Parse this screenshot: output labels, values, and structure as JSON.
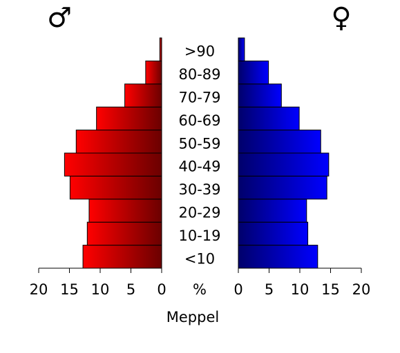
{
  "chart_data": {
    "type": "pyramid",
    "title": "Meppel",
    "x_label": "%",
    "categories": [
      "<10",
      "10-19",
      "20-29",
      "30-39",
      "40-49",
      "50-59",
      "60-69",
      "70-79",
      "80-89",
      ">90"
    ],
    "series": [
      {
        "name": "♂",
        "color": "#ff0000",
        "side": "left",
        "values": [
          12.8,
          12.1,
          11.8,
          14.9,
          15.8,
          13.9,
          10.6,
          6.0,
          2.6,
          0.3
        ]
      },
      {
        "name": "♀",
        "color": "#0000ff",
        "side": "right",
        "values": [
          12.9,
          11.3,
          11.1,
          14.4,
          14.7,
          13.4,
          9.9,
          7.0,
          4.9,
          1.0
        ]
      }
    ],
    "xlim": [
      0,
      20
    ],
    "xticks": [
      0,
      5,
      10,
      15,
      20
    ]
  }
}
